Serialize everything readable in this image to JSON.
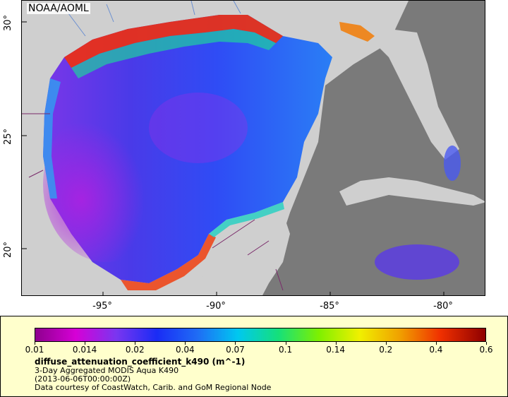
{
  "map": {
    "org_label": "NOAA/AOML",
    "colors": {
      "land": "#cfcfcf",
      "land_masked": "#7a7a7a",
      "rivers": "#6a8fd0",
      "borders": "#7a2a6a"
    }
  },
  "axes": {
    "x_ticks": [
      "-95°",
      "-90°",
      "-85°",
      "-80°"
    ],
    "y_ticks": [
      "30°",
      "25°",
      "20°"
    ]
  },
  "legend": {
    "colorbar_ticks": [
      "0.01",
      "0.014",
      "0.02",
      "0.04",
      "0.07",
      "0.1",
      "0.14",
      "0.2",
      "0.4",
      "0.6"
    ],
    "variable": "diffuse_attenuation_coefficient_k490 (m^-1)",
    "product": "3-Day Aggregated MODIS Aqua K490",
    "date": "(2013-06-06T00:00:00Z)",
    "credit": "Data courtesy of CoastWatch, Carib. and GoM Regional Node"
  }
}
